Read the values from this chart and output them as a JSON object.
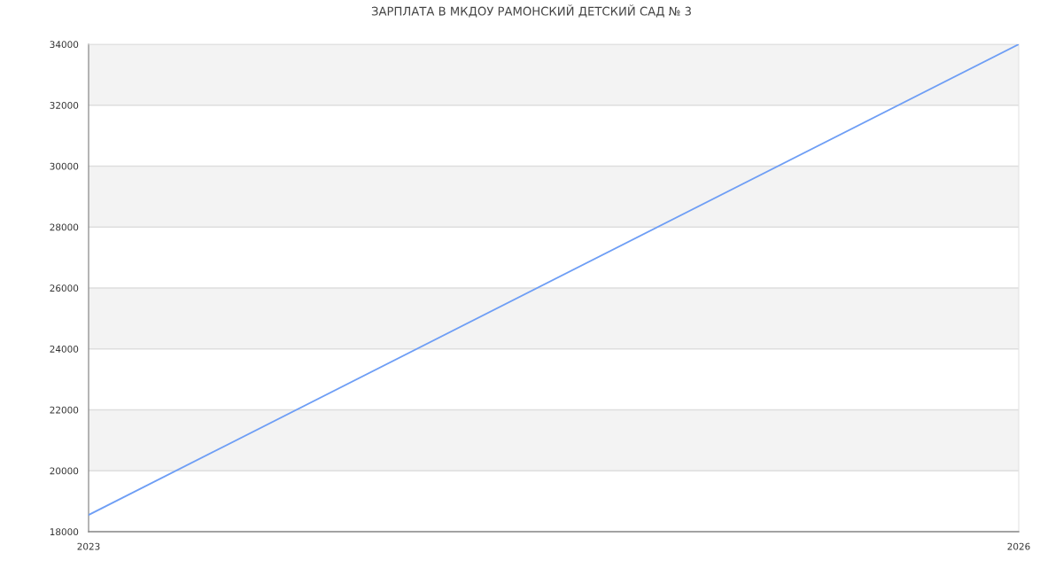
{
  "chart_data": {
    "type": "line",
    "title": "ЗАРПЛАТА В МКДОУ РАМОНСКИЙ ДЕТСКИЙ САД № 3",
    "x": [
      2023,
      2026
    ],
    "series": [
      {
        "color": "#6e9ef5",
        "values": [
          18550,
          34000
        ]
      }
    ],
    "xlim": [
      2023,
      2026
    ],
    "xticks": [
      2023,
      2026
    ],
    "ylim": [
      18000,
      34000
    ],
    "yticks": [
      18000,
      20000,
      22000,
      24000,
      26000,
      28000,
      30000,
      32000,
      34000
    ],
    "grid": "y",
    "line_style": "solid",
    "bands": [
      {
        "axis": "y",
        "from": 20000,
        "to": 22000,
        "color": "#f3f3f3"
      },
      {
        "axis": "y",
        "from": 24000,
        "to": 26000,
        "color": "#f3f3f3"
      },
      {
        "axis": "y",
        "from": 28000,
        "to": 30000,
        "color": "#f3f3f3"
      },
      {
        "axis": "y",
        "from": 32000,
        "to": 34000,
        "color": "#f3f3f3"
      }
    ]
  }
}
